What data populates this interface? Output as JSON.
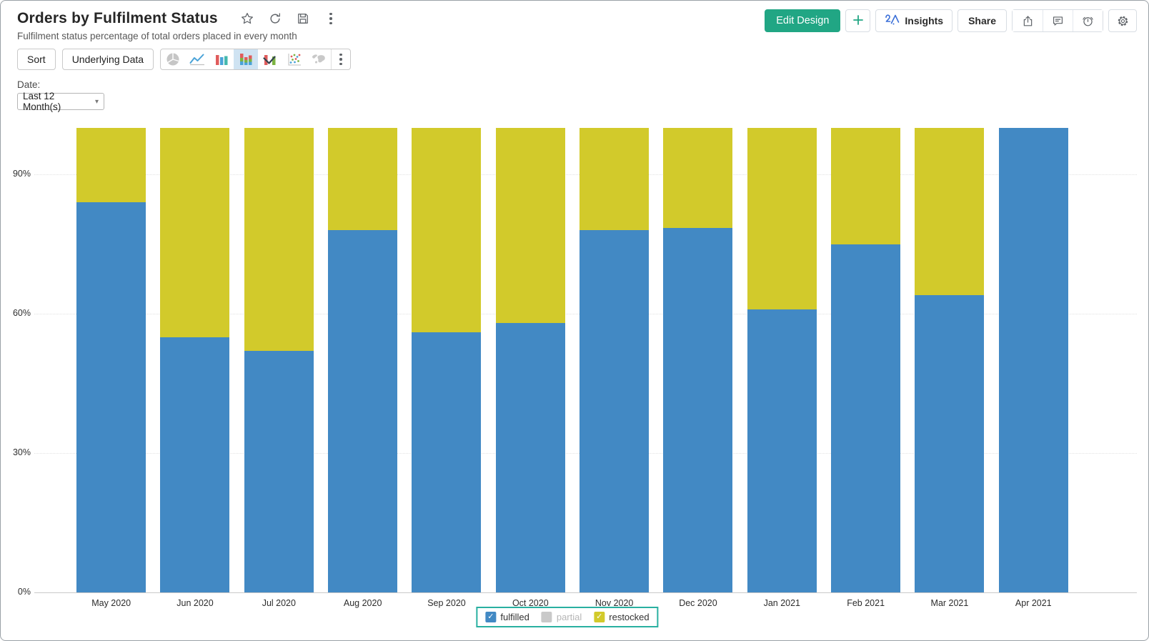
{
  "header": {
    "title": "Orders by Fulfilment Status",
    "subtitle": "Fulfilment status percentage of total orders placed in every month",
    "actions": {
      "edit_design": "Edit Design",
      "insights": "Insights",
      "share": "Share"
    }
  },
  "toolbar": {
    "sort_label": "Sort",
    "underlying_data_label": "Underlying Data",
    "chart_types": [
      "pie",
      "line",
      "bar",
      "stacked-bar",
      "combo",
      "scatter",
      "map"
    ],
    "selected_chart_type": "stacked-bar"
  },
  "filter": {
    "label": "Date:",
    "value": "Last 12 Month(s)"
  },
  "chart_data": {
    "type": "bar",
    "stacked": true,
    "title": "Orders by Fulfilment Status",
    "unit": "%",
    "ylim": [
      0,
      100
    ],
    "y_ticks": [
      0,
      30,
      60,
      90
    ],
    "grid": "dotted-horizontal",
    "legend_position": "bottom",
    "categories": [
      "May 2020",
      "Jun 2020",
      "Jul 2020",
      "Aug 2020",
      "Sep 2020",
      "Oct 2020",
      "Nov 2020",
      "Dec 2020",
      "Jan 2021",
      "Feb 2021",
      "Mar 2021",
      "Apr 2021"
    ],
    "series": [
      {
        "name": "fulfilled",
        "color": "#4289C4",
        "visible": true,
        "values": [
          84,
          55,
          52,
          78,
          56,
          58,
          78,
          78.5,
          61,
          75,
          64,
          100
        ]
      },
      {
        "name": "partial",
        "color": "#C9C9C9",
        "visible": false,
        "values": [
          0,
          0,
          0,
          0,
          0,
          0,
          0,
          0,
          0,
          0,
          0,
          0
        ]
      },
      {
        "name": "restocked",
        "color": "#D2CA2B",
        "visible": true,
        "values": [
          16,
          45,
          48,
          22,
          44,
          42,
          22,
          21.5,
          39,
          25,
          36,
          0
        ]
      }
    ],
    "legend": [
      {
        "label": "fulfilled",
        "color": "#4289C4",
        "checked": true
      },
      {
        "label": "partial",
        "color": "#C9C9C9",
        "checked": false
      },
      {
        "label": "restocked",
        "color": "#D2CA2B",
        "checked": true
      }
    ]
  }
}
